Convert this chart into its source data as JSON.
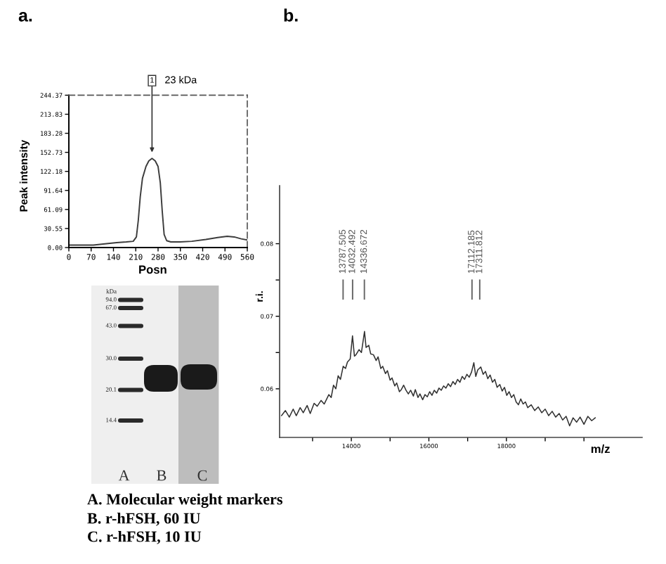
{
  "chart_data": [
    {
      "type": "line",
      "title": "a.",
      "xlabel": "Posn",
      "ylabel": "Peak intensity",
      "x": [
        0,
        40,
        77,
        113,
        150,
        180,
        202,
        212,
        218,
        224,
        231,
        242,
        251,
        261,
        271,
        280,
        287,
        293,
        299,
        307,
        320,
        349,
        386,
        430,
        467,
        497,
        519,
        541,
        560
      ],
      "series": [
        {
          "color": "#3c3c3c",
          "values": [
            4,
            4,
            4,
            6,
            8,
            9,
            10,
            17,
            44,
            81,
            111,
            130,
            139,
            143,
            139,
            130,
            104,
            59,
            21,
            11,
            9,
            9,
            10,
            13,
            16,
            18,
            17,
            14,
            12
          ]
        }
      ],
      "xlim": [
        0,
        560
      ],
      "ylim": [
        0,
        244.37
      ],
      "xticks": [
        0,
        70,
        140,
        210,
        280,
        350,
        420,
        490,
        560
      ],
      "yticks": [
        {
          "value": 0,
          "label": "0.00"
        },
        30.55,
        61.09,
        91.64,
        122.18,
        152.73,
        183.28,
        213.83,
        244.37
      ],
      "annotations": [
        {
          "text": "1",
          "x": 261,
          "y": 152.73
        },
        "23 kDa"
      ]
    },
    {
      "type": "line",
      "title": "b.",
      "xlabel": "m/z",
      "ylabel": "r.i.",
      "x": [
        12200,
        12300,
        12400,
        12500,
        12580,
        12680,
        12760,
        12860,
        12940,
        13040,
        13120,
        13220,
        13300,
        13420,
        13480,
        13540,
        13600,
        13660,
        13720,
        13790,
        13850,
        13900,
        13970,
        14030,
        14080,
        14120,
        14200,
        14260,
        14340,
        14380,
        14450,
        14500,
        14570,
        14640,
        14690,
        14760,
        14810,
        14880,
        14930,
        15000,
        15050,
        15120,
        15170,
        15240,
        15290,
        15350,
        15410,
        15470,
        15530,
        15600,
        15650,
        15720,
        15770,
        15840,
        15900,
        15960,
        16020,
        16080,
        16140,
        16200,
        16260,
        16320,
        16380,
        16440,
        16500,
        16560,
        16620,
        16680,
        16740,
        16800,
        16860,
        16920,
        16980,
        17040,
        17100,
        17160,
        17210,
        17260,
        17340,
        17400,
        17460,
        17520,
        17580,
        17640,
        17700,
        17760,
        17830,
        17890,
        17950,
        18010,
        18070,
        18130,
        18190,
        18250,
        18310,
        18370,
        18430,
        18490,
        18550,
        18640,
        18730,
        18820,
        18910,
        19000,
        19090,
        19180,
        19270,
        19360,
        19450,
        19540,
        19630,
        19720,
        19810,
        19900,
        20000,
        20100,
        20200,
        20290
      ],
      "series": [
        {
          "color": "#303030",
          "values": [
            0.0563,
            0.057,
            0.0561,
            0.0572,
            0.0563,
            0.0574,
            0.0567,
            0.0577,
            0.0566,
            0.058,
            0.0576,
            0.0584,
            0.0579,
            0.0592,
            0.0588,
            0.0605,
            0.06,
            0.0618,
            0.0613,
            0.0631,
            0.0628,
            0.0637,
            0.0641,
            0.0673,
            0.0645,
            0.0647,
            0.0654,
            0.065,
            0.0679,
            0.0657,
            0.066,
            0.0648,
            0.0647,
            0.0639,
            0.0644,
            0.0628,
            0.0631,
            0.0621,
            0.0625,
            0.0612,
            0.0615,
            0.0604,
            0.0608,
            0.0596,
            0.0599,
            0.0605,
            0.0598,
            0.0593,
            0.0598,
            0.059,
            0.0599,
            0.0588,
            0.0593,
            0.0585,
            0.0592,
            0.0589,
            0.0596,
            0.0591,
            0.0598,
            0.0594,
            0.0601,
            0.0598,
            0.0604,
            0.0601,
            0.0607,
            0.0603,
            0.061,
            0.0606,
            0.0613,
            0.0609,
            0.0617,
            0.0613,
            0.062,
            0.0616,
            0.0623,
            0.0636,
            0.0617,
            0.0626,
            0.063,
            0.062,
            0.0624,
            0.0614,
            0.0619,
            0.0609,
            0.0613,
            0.0602,
            0.0606,
            0.0597,
            0.0602,
            0.0591,
            0.0596,
            0.0588,
            0.0592,
            0.0582,
            0.0578,
            0.0586,
            0.0579,
            0.0582,
            0.0574,
            0.0578,
            0.057,
            0.0575,
            0.0567,
            0.0572,
            0.0563,
            0.0569,
            0.0561,
            0.0566,
            0.0557,
            0.0562,
            0.0549,
            0.056,
            0.0554,
            0.0561,
            0.0551,
            0.0562,
            0.0556,
            0.056
          ]
        }
      ],
      "xlim": [
        12150,
        21500
      ],
      "ylim": [
        0.0533,
        0.088
      ],
      "xticks": [
        {
          "value": 13000,
          "label": null
        },
        14000,
        {
          "value": 15000,
          "label": null
        },
        16000,
        {
          "value": 17000,
          "label": null
        },
        18000,
        {
          "value": 19000,
          "label": null
        },
        {
          "value": 20000,
          "label": null
        }
      ],
      "yticks": [
        0.06,
        {
          "value": 0.065,
          "label": null
        },
        0.07,
        {
          "value": 0.075,
          "label": null
        },
        0.08
      ],
      "ref_lines": [
        {
          "axis": "x",
          "value": 13787.505,
          "label": "13787.505",
          "color": "#666666"
        },
        {
          "axis": "x",
          "value": 14032.492,
          "label": "14032.492",
          "color": "#666666"
        },
        {
          "axis": "x",
          "value": 14336.672,
          "label": "14336.672",
          "color": "#666666"
        },
        {
          "axis": "x",
          "value": 17112.185,
          "label": "17112.185",
          "color": "#666666"
        },
        {
          "axis": "x",
          "value": 17311.812,
          "label": "17311.812",
          "color": "#666666"
        }
      ]
    },
    {
      "type": "other",
      "annotations": [
        "kDa",
        "94.0",
        "67.0",
        "43.0",
        "30.0",
        "20.1",
        "14.4",
        "A",
        "B",
        "C",
        "A. Molecular weight markers",
        "B. r-hFSH, 60 IU",
        "C. r-hFSH, 10 IU"
      ]
    }
  ]
}
